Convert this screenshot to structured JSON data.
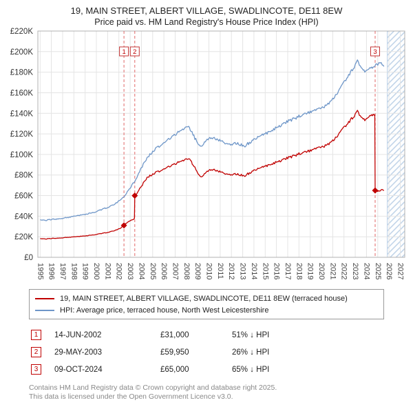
{
  "title": "19, MAIN STREET, ALBERT VILLAGE, SWADLINCOTE, DE11 8EW",
  "subtitle": "Price paid vs. HM Land Registry's House Price Index (HPI)",
  "chart_data": {
    "type": "line",
    "x_range": [
      1994.8,
      2027.4
    ],
    "y_range": [
      0,
      220000
    ],
    "y_tick_step": 20000,
    "y_tick_labels": [
      "£0",
      "£20K",
      "£40K",
      "£60K",
      "£80K",
      "£100K",
      "£120K",
      "£140K",
      "£160K",
      "£180K",
      "£200K",
      "£220K"
    ],
    "x_ticks": [
      1995,
      1996,
      1997,
      1998,
      1999,
      2000,
      2001,
      2002,
      2003,
      2004,
      2005,
      2006,
      2007,
      2008,
      2009,
      2010,
      2011,
      2012,
      2013,
      2014,
      2015,
      2016,
      2017,
      2018,
      2019,
      2020,
      2021,
      2022,
      2023,
      2024,
      2025,
      2026,
      2027
    ],
    "grid": true,
    "future_hatch_start": 2025.85,
    "future_hatch_color": "#b9cfe6",
    "sale_line_color": "#e06666",
    "series": [
      {
        "name": "19, MAIN STREET, ALBERT VILLAGE, SWADLINCOTE, DE11 8EW (terraced house)",
        "color": "#c00000",
        "points": [
          [
            1995.0,
            18200
          ],
          [
            1995.5,
            17900
          ],
          [
            1996.0,
            18300
          ],
          [
            1996.5,
            18600
          ],
          [
            1997.0,
            19000
          ],
          [
            1997.5,
            19400
          ],
          [
            1998.0,
            19800
          ],
          [
            1998.5,
            20300
          ],
          [
            1999.0,
            20800
          ],
          [
            1999.5,
            21500
          ],
          [
            2000.0,
            22300
          ],
          [
            2000.5,
            23200
          ],
          [
            2001.0,
            24200
          ],
          [
            2001.5,
            25600
          ],
          [
            2002.0,
            27500
          ],
          [
            2002.45,
            31000
          ],
          [
            2002.7,
            33200
          ],
          [
            2003.0,
            35500
          ],
          [
            2003.38,
            37500
          ],
          [
            2003.41,
            59950
          ],
          [
            2003.7,
            64000
          ],
          [
            2004.0,
            69000
          ],
          [
            2004.5,
            77000
          ],
          [
            2005.0,
            81000
          ],
          [
            2005.5,
            83500
          ],
          [
            2006.0,
            86000
          ],
          [
            2006.5,
            88500
          ],
          [
            2007.0,
            91000
          ],
          [
            2007.5,
            93500
          ],
          [
            2008.0,
            95500
          ],
          [
            2008.3,
            95000
          ],
          [
            2008.6,
            90000
          ],
          [
            2009.0,
            82000
          ],
          [
            2009.3,
            78500
          ],
          [
            2009.6,
            81000
          ],
          [
            2010.0,
            84500
          ],
          [
            2010.4,
            86000
          ],
          [
            2010.8,
            84000
          ],
          [
            2011.2,
            82000
          ],
          [
            2011.6,
            81000
          ],
          [
            2012.0,
            80500
          ],
          [
            2012.4,
            81000
          ],
          [
            2012.8,
            80000
          ],
          [
            2013.2,
            79500
          ],
          [
            2013.6,
            82000
          ],
          [
            2014.0,
            84500
          ],
          [
            2014.5,
            86500
          ],
          [
            2015.0,
            88500
          ],
          [
            2015.5,
            90500
          ],
          [
            2016.0,
            92500
          ],
          [
            2016.5,
            94500
          ],
          [
            2017.0,
            96500
          ],
          [
            2017.5,
            98500
          ],
          [
            2018.0,
            100500
          ],
          [
            2018.5,
            102000
          ],
          [
            2019.0,
            103500
          ],
          [
            2019.5,
            105500
          ],
          [
            2020.0,
            107000
          ],
          [
            2020.5,
            109500
          ],
          [
            2021.0,
            113500
          ],
          [
            2021.5,
            119500
          ],
          [
            2022.0,
            126500
          ],
          [
            2022.5,
            132500
          ],
          [
            2023.0,
            138500
          ],
          [
            2023.2,
            141500
          ],
          [
            2023.45,
            137500
          ],
          [
            2023.7,
            135000
          ],
          [
            2024.0,
            133500
          ],
          [
            2024.3,
            136500
          ],
          [
            2024.6,
            139500
          ],
          [
            2024.74,
            139000
          ],
          [
            2024.77,
            65000
          ],
          [
            2025.0,
            64500
          ],
          [
            2025.3,
            65500
          ],
          [
            2025.55,
            64800
          ]
        ]
      },
      {
        "name": "HPI: Average price, terraced house, North West Leicestershire",
        "color": "#6e96c8",
        "points": [
          [
            1995.0,
            36500
          ],
          [
            1995.5,
            36000
          ],
          [
            1996.0,
            36800
          ],
          [
            1996.5,
            37300
          ],
          [
            1997.0,
            38000
          ],
          [
            1997.5,
            38800
          ],
          [
            1998.0,
            39800
          ],
          [
            1998.5,
            40800
          ],
          [
            1999.0,
            41800
          ],
          [
            1999.5,
            43000
          ],
          [
            2000.0,
            44500
          ],
          [
            2000.5,
            46500
          ],
          [
            2001.0,
            48500
          ],
          [
            2001.5,
            51000
          ],
          [
            2002.0,
            54500
          ],
          [
            2002.5,
            60000
          ],
          [
            2003.0,
            67000
          ],
          [
            2003.5,
            76000
          ],
          [
            2004.0,
            87000
          ],
          [
            2004.5,
            96000
          ],
          [
            2005.0,
            103000
          ],
          [
            2005.5,
            107500
          ],
          [
            2006.0,
            111500
          ],
          [
            2006.5,
            115500
          ],
          [
            2007.0,
            119500
          ],
          [
            2007.5,
            123500
          ],
          [
            2008.0,
            126500
          ],
          [
            2008.2,
            127500
          ],
          [
            2008.5,
            121000
          ],
          [
            2009.0,
            111000
          ],
          [
            2009.3,
            108500
          ],
          [
            2009.6,
            111500
          ],
          [
            2010.0,
            115500
          ],
          [
            2010.4,
            117000
          ],
          [
            2010.8,
            114500
          ],
          [
            2011.2,
            112000
          ],
          [
            2011.6,
            110500
          ],
          [
            2012.0,
            110000
          ],
          [
            2012.4,
            111000
          ],
          [
            2012.8,
            109500
          ],
          [
            2013.2,
            108500
          ],
          [
            2013.6,
            111500
          ],
          [
            2014.0,
            114500
          ],
          [
            2014.5,
            117500
          ],
          [
            2015.0,
            120000
          ],
          [
            2015.5,
            123000
          ],
          [
            2016.0,
            126000
          ],
          [
            2016.5,
            129000
          ],
          [
            2017.0,
            132000
          ],
          [
            2017.5,
            134500
          ],
          [
            2018.0,
            137000
          ],
          [
            2018.5,
            139000
          ],
          [
            2019.0,
            141000
          ],
          [
            2019.5,
            143000
          ],
          [
            2020.0,
            145000
          ],
          [
            2020.5,
            148500
          ],
          [
            2021.0,
            154000
          ],
          [
            2021.5,
            161500
          ],
          [
            2022.0,
            170500
          ],
          [
            2022.5,
            178500
          ],
          [
            2023.0,
            186500
          ],
          [
            2023.2,
            190500
          ],
          [
            2023.45,
            186000
          ],
          [
            2023.7,
            182500
          ],
          [
            2024.0,
            180500
          ],
          [
            2024.3,
            183000
          ],
          [
            2024.6,
            185500
          ],
          [
            2025.0,
            187500
          ],
          [
            2025.2,
            190000
          ],
          [
            2025.4,
            188000
          ],
          [
            2025.55,
            185500
          ]
        ]
      }
    ],
    "sales": [
      {
        "n": "1",
        "x": 2002.45,
        "price": 31000
      },
      {
        "n": "2",
        "x": 2003.41,
        "price": 59950
      },
      {
        "n": "3",
        "x": 2024.77,
        "price": 65000
      }
    ]
  },
  "legend": [
    {
      "label": "19, MAIN STREET, ALBERT VILLAGE, SWADLINCOTE, DE11 8EW (terraced house)",
      "color": "#c00000"
    },
    {
      "label": "HPI: Average price, terraced house, North West Leicestershire",
      "color": "#6e96c8"
    }
  ],
  "transactions": [
    {
      "num": "1",
      "date": "14-JUN-2002",
      "price": "£31,000",
      "hpi": "51% ↓ HPI"
    },
    {
      "num": "2",
      "date": "29-MAY-2003",
      "price": "£59,950",
      "hpi": "26% ↓ HPI"
    },
    {
      "num": "3",
      "date": "09-OCT-2024",
      "price": "£65,000",
      "hpi": "65% ↓ HPI"
    }
  ],
  "footer": {
    "line1": "Contains HM Land Registry data © Crown copyright and database right 2025.",
    "line2": "This data is licensed under the Open Government Licence v3.0."
  }
}
